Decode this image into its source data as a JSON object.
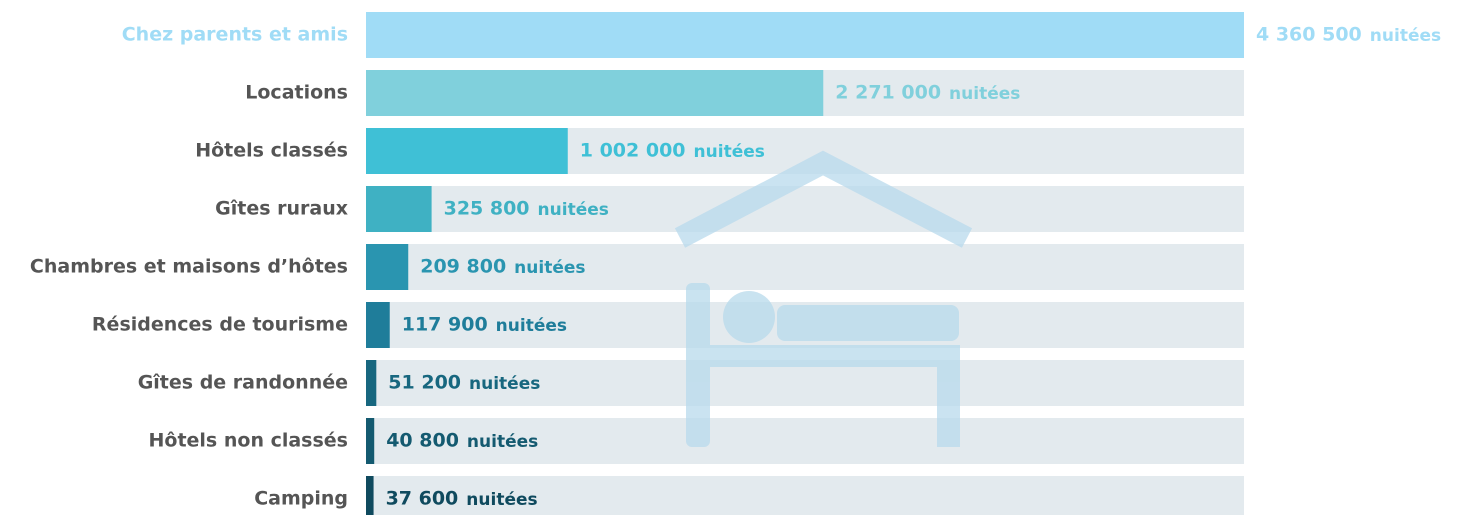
{
  "chart_data": {
    "type": "bar",
    "orientation": "horizontal",
    "unit": "nuitées",
    "categories": [
      "Chez parents et amis",
      "Locations",
      "Hôtels classés",
      "Gîtes ruraux",
      "Chambres et maisons d’hôtes",
      "Résidences de tourisme",
      "Gîtes de randonnée",
      "Hôtels non classés",
      "Camping"
    ],
    "values": [
      4360500,
      2271000,
      1002000,
      325800,
      209800,
      117900,
      51200,
      40800,
      37600
    ],
    "value_labels": [
      "4 360 500",
      "2 271 000",
      "1 002 000",
      "325 800",
      "209 800",
      "117 900",
      "51 200",
      "40 800",
      "37 600"
    ],
    "colors": [
      "#a0dcf6",
      "#80d0dc",
      "#3fc0d6",
      "#3fb1c3",
      "#2a95b0",
      "#1f7d9a",
      "#17677f",
      "#145a70",
      "#0f4a5e"
    ]
  }
}
